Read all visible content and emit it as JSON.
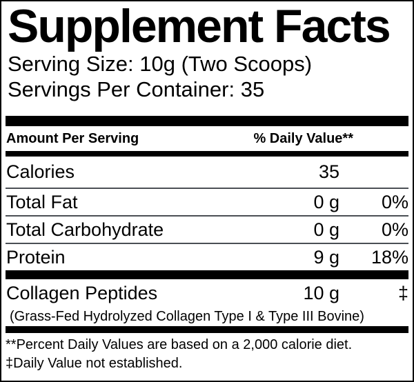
{
  "label": {
    "title": "Supplement Facts",
    "serving_size": "Serving Size: 10g (Two Scoops)",
    "servings_per_container": "Servings Per Container: 35",
    "header": {
      "amount_per_serving": "Amount Per Serving",
      "daily_value": "% Daily Value**"
    },
    "rows": [
      {
        "name": "Calories",
        "amount": "35",
        "dv": ""
      },
      {
        "name": "Total Fat",
        "amount": "0 g",
        "dv": "0%"
      },
      {
        "name": "Total Carbohydrate",
        "amount": "0 g",
        "dv": "0%"
      },
      {
        "name": "Protein",
        "amount": "9 g",
        "dv": "18%"
      }
    ],
    "ingredient": {
      "name": "Collagen Peptides",
      "amount": "10 g",
      "dv": "‡",
      "detail": "(Grass-Fed Hydrolyzed Collagen Type I & Type III Bovine)"
    },
    "footnotes": [
      "**Percent Daily Values are based on a 2,000 calorie diet.",
      "‡Daily Value not established."
    ],
    "colors": {
      "text": "#000000",
      "background": "#ffffff",
      "thick_bar": "#000000",
      "thin_divider": "#4a4e54"
    }
  }
}
